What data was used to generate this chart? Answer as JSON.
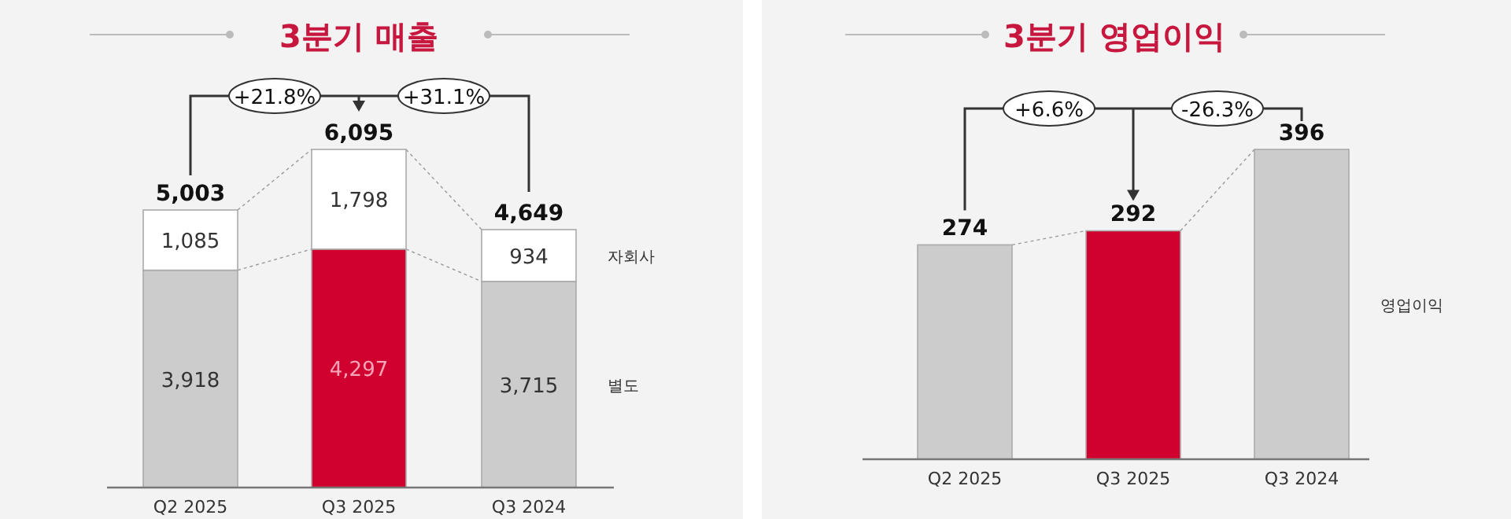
{
  "chart_data": [
    {
      "type": "bar",
      "title": "3분기 매출",
      "categories": [
        "Q2 2025",
        "Q3 2025",
        "Q3 2024"
      ],
      "stacked": true,
      "totals": [
        "5,003",
        "6,095",
        "4,649"
      ],
      "annotations": [
        "+21.8%",
        "+31.1%"
      ],
      "series": [
        {
          "name": "별도",
          "colors": [
            "#cccccc",
            "#d0002f",
            "#cccccc"
          ],
          "values": [
            3918,
            4297,
            3715
          ],
          "value_labels": [
            "3,918",
            "4,297",
            "3,715"
          ]
        },
        {
          "name": "자회사",
          "color": "#ffffff",
          "values": [
            1085,
            1798,
            934
          ],
          "value_labels": [
            "1,085",
            "1,798",
            "934"
          ]
        }
      ]
    },
    {
      "type": "bar",
      "title": "3분기 영업이익",
      "categories": [
        "Q2 2025",
        "Q3 2025",
        "Q3 2024"
      ],
      "data_labels": true,
      "annotations": [
        "+6.6%",
        "-26.3%"
      ],
      "series": [
        {
          "name": "영업이익",
          "colors": [
            "#cccccc",
            "#d0002f",
            "#cccccc"
          ],
          "values": [
            274,
            292,
            396
          ]
        }
      ]
    }
  ]
}
